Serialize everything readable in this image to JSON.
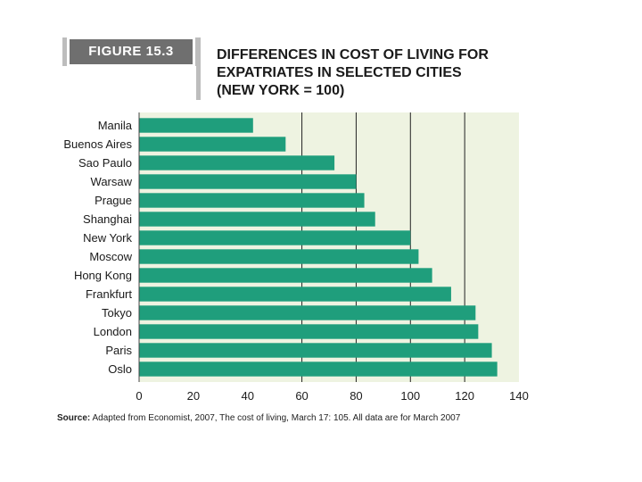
{
  "figure": {
    "label": "FIGURE 15.3",
    "title_lines": [
      "DIFFERENCES IN COST OF LIVING FOR",
      "EXPATRIATES IN SELECTED CITIES",
      "(NEW YORK = 100)"
    ],
    "source_label": "Source:",
    "source_text": "Adapted from Economist, 2007, The cost of living, March 17: 105. All data are for March 2007"
  },
  "colors": {
    "bar": "#1f9e7c",
    "plot_bg": "#eef3e1",
    "grid": "#222222",
    "badge": "#6f6f6f"
  },
  "chart_data": {
    "type": "bar",
    "orientation": "horizontal",
    "title": "DIFFERENCES IN COST OF LIVING FOR EXPATRIATES IN SELECTED CITIES (NEW YORK = 100)",
    "categories": [
      "Manila",
      "Buenos Aires",
      "Sao Paulo",
      "Warsaw",
      "Prague",
      "Shanghai",
      "New York",
      "Moscow",
      "Hong Kong",
      "Frankfurt",
      "Tokyo",
      "London",
      "Paris",
      "Oslo"
    ],
    "values": [
      42,
      54,
      72,
      80,
      83,
      87,
      100,
      103,
      108,
      115,
      124,
      125,
      130,
      132
    ],
    "xlim": [
      0,
      140
    ],
    "xticks": [
      0,
      20,
      40,
      60,
      80,
      100,
      120,
      140
    ],
    "gridlines": [
      60,
      80,
      100,
      120
    ],
    "xlabel": "",
    "ylabel": ""
  }
}
